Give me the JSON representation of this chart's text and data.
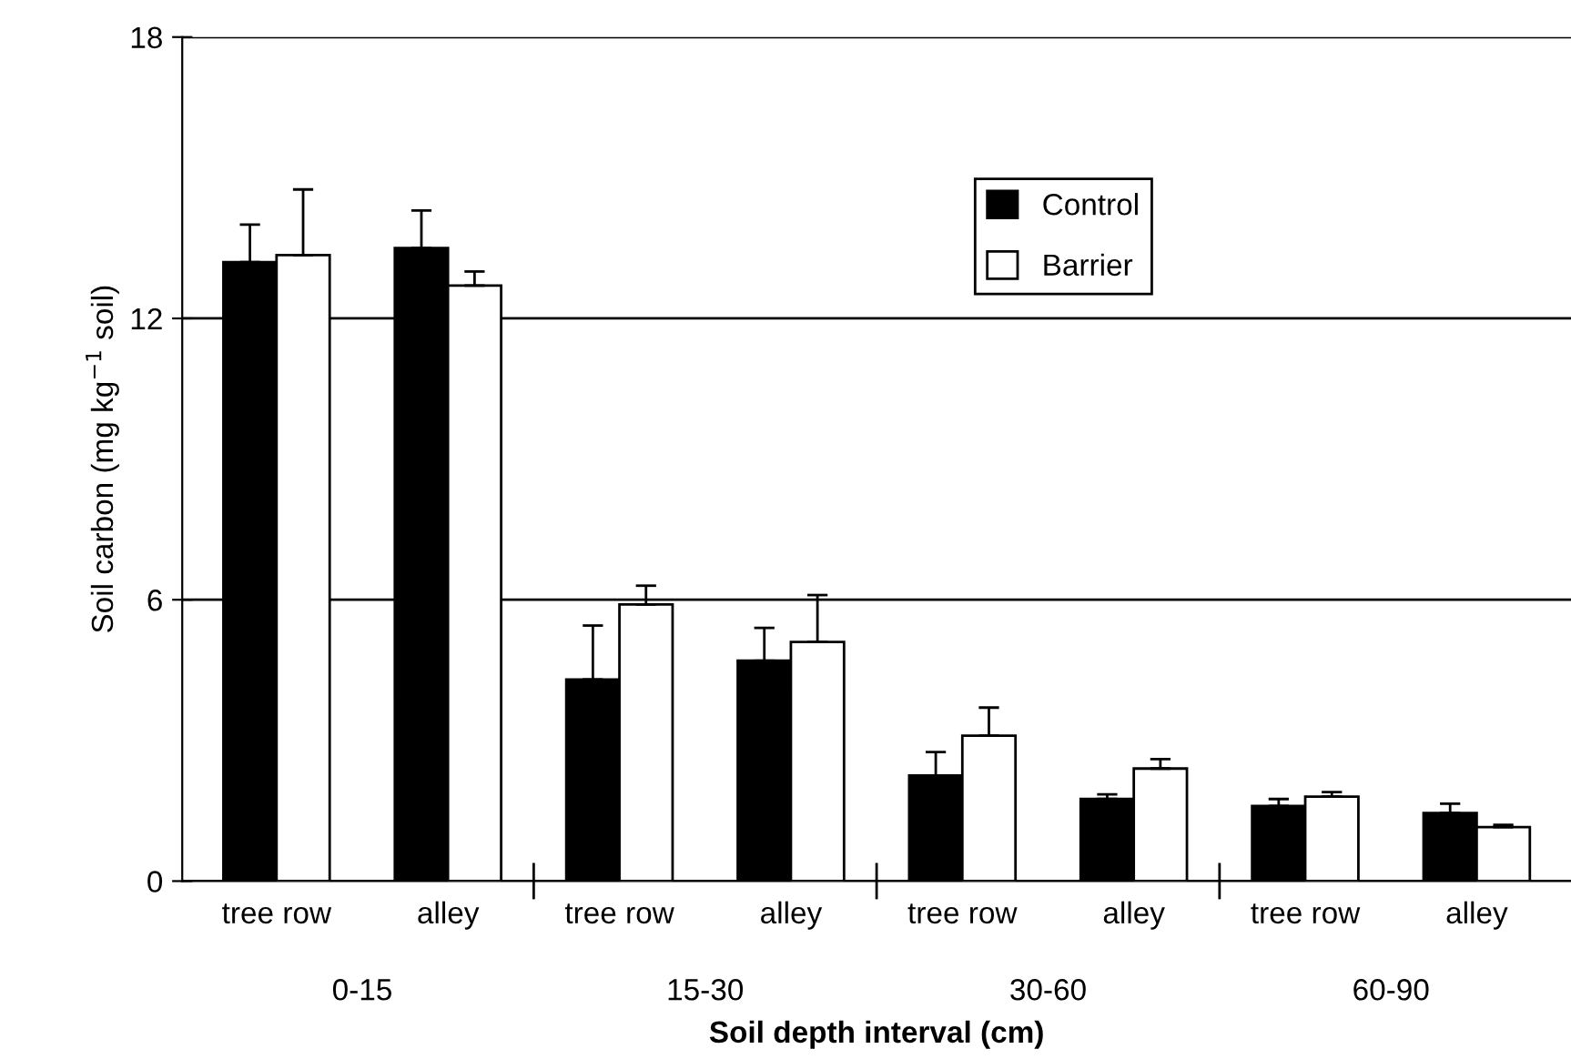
{
  "chart_data": {
    "type": "bar",
    "xlabel": "Soil depth interval (cm)",
    "ylabel": "Soil carbon (mg kg$^{−1}$ soil)",
    "categories": [
      "tree row",
      "alley",
      "tree row",
      "alley",
      "tree row",
      "alley",
      "tree row",
      "alley"
    ],
    "series": [
      {
        "name": "Control",
        "color": "#000000",
        "values": [
          13.2,
          13.5,
          4.3,
          4.7,
          2.25,
          1.75,
          1.6,
          1.45
        ],
        "errors": [
          [
            13.2,
            14.0
          ],
          [
            13.5,
            14.3
          ],
          [
            4.3,
            5.45
          ],
          [
            4.7,
            5.4
          ],
          [
            2.25,
            2.75
          ],
          [
            1.75,
            1.85
          ],
          [
            1.6,
            1.75
          ],
          [
            1.45,
            1.65
          ]
        ]
      },
      {
        "name": "Barrier",
        "color": "#ffffff",
        "values": [
          13.35,
          12.7,
          5.9,
          5.1,
          3.1,
          2.4,
          1.8,
          1.15
        ],
        "errors": [
          [
            13.35,
            14.75
          ],
          [
            12.7,
            13.0
          ],
          [
            5.9,
            6.3
          ],
          [
            5.1,
            6.1
          ],
          [
            3.1,
            3.7
          ],
          [
            2.4,
            2.6
          ],
          [
            1.8,
            1.9
          ],
          [
            1.15,
            1.2
          ]
        ]
      }
    ],
    "annotations": [
      "0-15",
      "15-30",
      "30-60",
      "60-90"
    ],
    "ylim": [
      0,
      18
    ],
    "yticks": [
      0,
      6,
      12,
      18
    ],
    "grid": "y",
    "legend": "top right"
  }
}
